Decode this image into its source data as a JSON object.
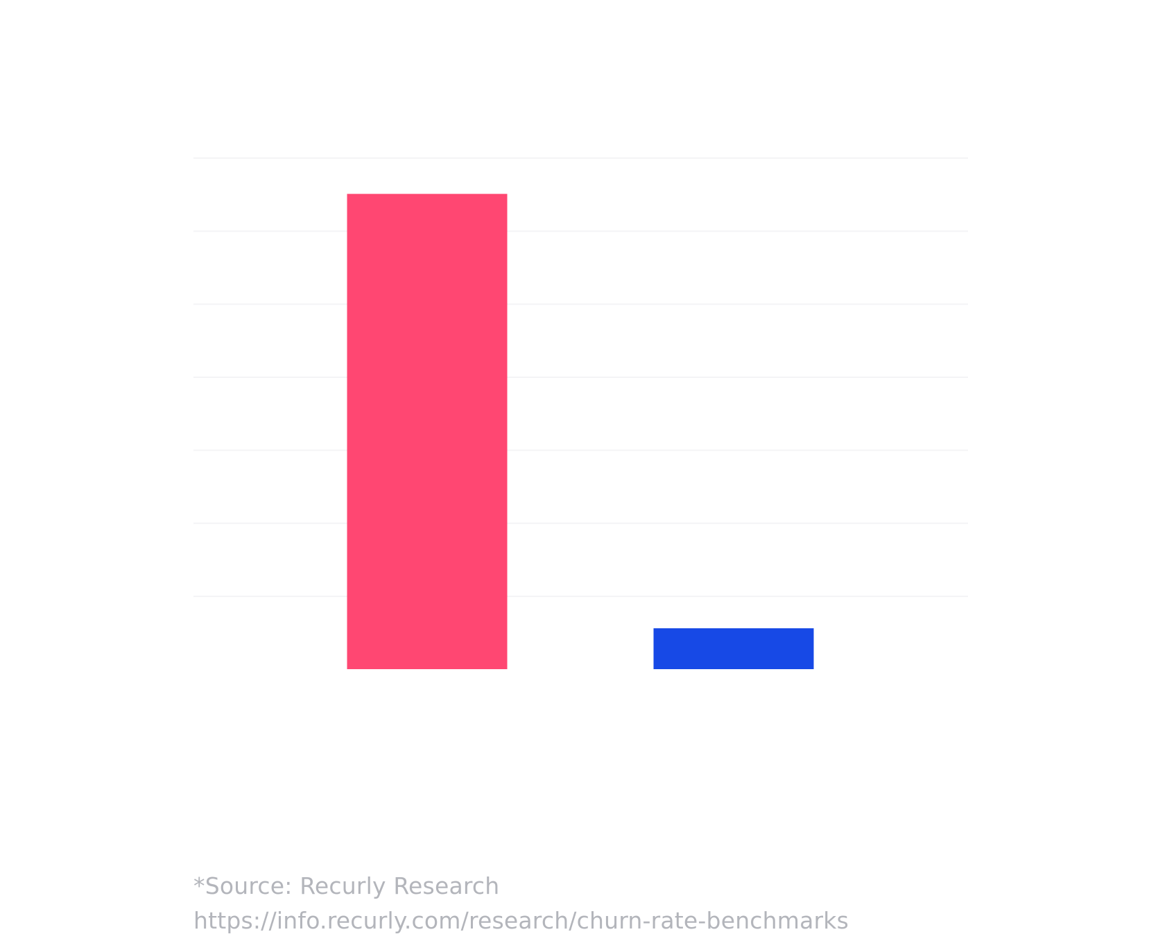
{
  "chart_data": {
    "type": "bar",
    "categories": [
      "",
      ""
    ],
    "values": [
      93,
      8
    ],
    "colors": [
      "#ff4772",
      "#1749e6"
    ],
    "ylim": [
      0,
      100
    ],
    "grid": true,
    "title": "",
    "xlabel": "",
    "ylabel": ""
  },
  "footer": {
    "source": "*Source: Recurly Research",
    "url": "https://info.recurly.com/research/churn-rate-benchmarks"
  }
}
